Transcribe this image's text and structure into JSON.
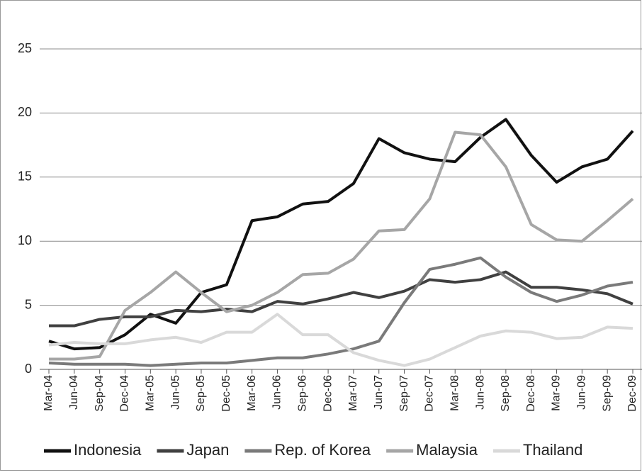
{
  "chart_data": {
    "type": "line",
    "categories": [
      "Mar-04",
      "Jun-04",
      "Sep-04",
      "Dec-04",
      "Mar-05",
      "Jun-05",
      "Sep-05",
      "Dec-05",
      "Mar-06",
      "Jun-06",
      "Sep-06",
      "Dec-06",
      "Mar-07",
      "Jun-07",
      "Sep-07",
      "Dec-07",
      "Mar-08",
      "Jun-08",
      "Sep-08",
      "Dec-08",
      "Mar-09",
      "Jun-09",
      "Sep-09",
      "Dec-09"
    ],
    "series": [
      {
        "name": "Indonesia",
        "color": "#111111",
        "values": [
          2.2,
          1.6,
          1.7,
          2.7,
          4.3,
          3.6,
          6.0,
          6.6,
          11.6,
          11.9,
          12.9,
          13.1,
          14.5,
          18.0,
          16.9,
          16.4,
          16.2,
          18.1,
          19.5,
          16.7,
          14.6,
          15.8,
          16.4,
          18.6
        ]
      },
      {
        "name": "Japan",
        "color": "#404040",
        "values": [
          3.4,
          3.4,
          3.9,
          4.1,
          4.1,
          4.6,
          4.5,
          4.7,
          4.5,
          5.3,
          5.1,
          5.5,
          6.0,
          5.6,
          6.1,
          7.0,
          6.8,
          7.0,
          7.6,
          6.4,
          6.4,
          6.2,
          5.9,
          5.1
        ]
      },
      {
        "name": "Rep. of Korea",
        "color": "#7a7a7a",
        "values": [
          0.5,
          0.4,
          0.4,
          0.4,
          0.3,
          0.4,
          0.5,
          0.5,
          0.7,
          0.9,
          0.9,
          1.2,
          1.6,
          2.2,
          5.2,
          7.8,
          8.2,
          8.7,
          7.2,
          6.0,
          5.3,
          5.8,
          6.5,
          6.8
        ]
      },
      {
        "name": "Malaysia",
        "color": "#a6a6a6",
        "values": [
          0.8,
          0.8,
          1.0,
          4.6,
          6.0,
          7.6,
          6.0,
          4.5,
          5.0,
          6.0,
          7.4,
          7.5,
          8.6,
          10.8,
          10.9,
          13.3,
          18.5,
          18.3,
          15.8,
          11.3,
          10.1,
          10.0,
          11.6,
          13.3
        ]
      },
      {
        "name": "Thailand",
        "color": "#d9d9d9",
        "values": [
          1.9,
          2.1,
          2.0,
          2.0,
          2.3,
          2.5,
          2.1,
          2.9,
          2.9,
          4.3,
          2.7,
          2.7,
          1.3,
          0.7,
          0.3,
          0.8,
          1.7,
          2.6,
          3.0,
          2.9,
          2.4,
          2.5,
          3.3,
          3.2
        ]
      }
    ],
    "ylim": [
      0,
      25
    ],
    "yticks": [
      0,
      5,
      10,
      15,
      20,
      25
    ],
    "grid": true,
    "legend": "bottom"
  }
}
